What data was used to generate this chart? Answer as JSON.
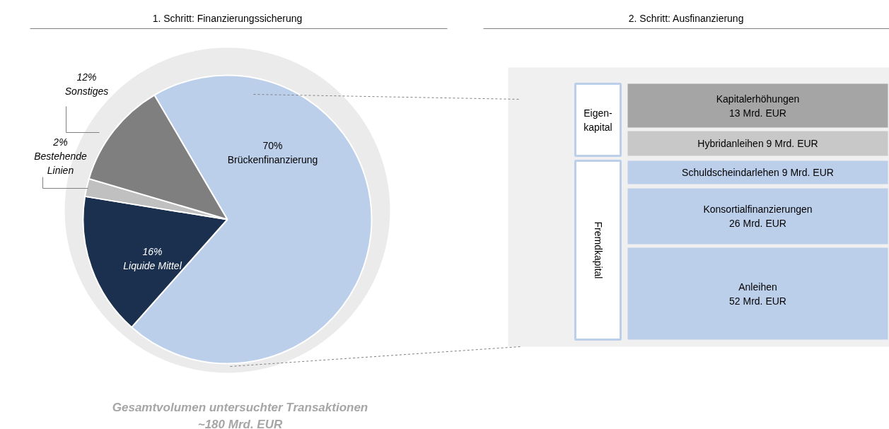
{
  "chart_data": [
    {
      "type": "pie",
      "title": "1. Schritt: Finanzierungssicherung",
      "categories": [
        "Brückenfinanzierung",
        "Liquide Mittel",
        "Bestehende Linien",
        "Sonstiges"
      ],
      "values": [
        70,
        16,
        2,
        12
      ],
      "colors": [
        "#bccfea",
        "#1b2f4e",
        "#c0c0c0",
        "#7f7f7f"
      ],
      "value_labels": [
        "70%",
        "16%",
        "2%",
        "12%"
      ],
      "annotations": [
        "Gesamtvolumen untersuchter Transaktionen\n~180 Mrd. EUR"
      ]
    },
    {
      "type": "other",
      "title": "2. Schritt: Ausfinanzierung",
      "categories": [
        "Kapitalerhöhungen",
        "Hybridanleihen",
        "Schuldscheindarlehen",
        "Konsortialfinanzierungen",
        "Anleihen"
      ],
      "value_labels": [
        "13 Mrd. EUR",
        "9 Mrd. EUR",
        "9 Mrd. EUR",
        "26 Mrd. EUR",
        "52 Mrd. EUR"
      ],
      "colors": [
        "#a5a5a5",
        "#c8c8c8",
        "#bccfea",
        "#bccfea",
        "#bccfea"
      ],
      "annotations": [
        "Eigen-\nkapital",
        "Fremdkapital"
      ]
    }
  ]
}
